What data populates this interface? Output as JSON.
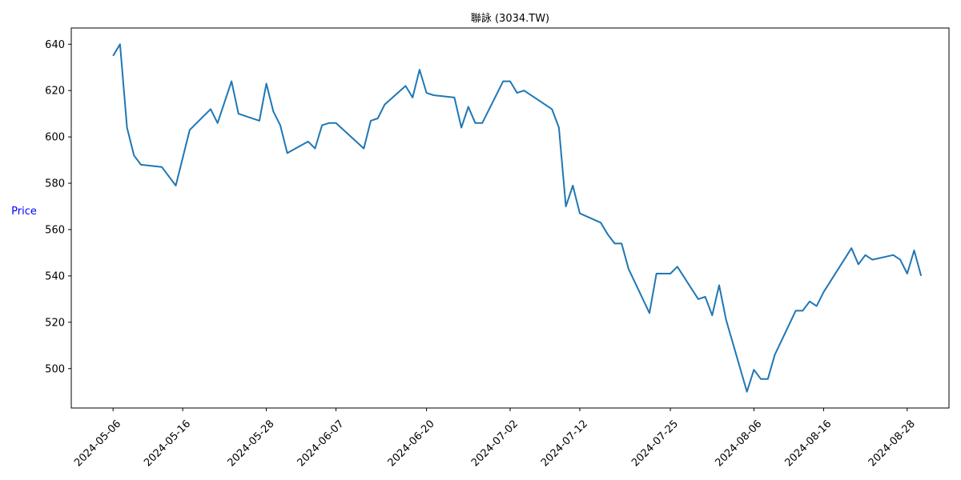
{
  "chart_data": {
    "type": "line",
    "title": "聯詠 (3034.TW)",
    "xlabel": "",
    "ylabel": "Price",
    "ylabel_color": "#0000ff",
    "line_color": "#1f77b4",
    "grid": false,
    "legend": "none",
    "x_tick_labels": [
      "2024-05-06",
      "2024-05-16",
      "2024-05-28",
      "2024-06-07",
      "2024-06-20",
      "2024-07-02",
      "2024-07-12",
      "2024-07-25",
      "2024-08-06",
      "2024-08-16",
      "2024-08-28"
    ],
    "y_ticks": [
      500,
      520,
      540,
      560,
      580,
      600,
      620,
      640
    ],
    "ylim": [
      483,
      647
    ],
    "xlim": [
      "2024-04-30",
      "2024-09-03"
    ],
    "series": [
      {
        "x": [
          "2024-05-06",
          "2024-05-07",
          "2024-05-08",
          "2024-05-09",
          "2024-05-10",
          "2024-05-13",
          "2024-05-15",
          "2024-05-17",
          "2024-05-20",
          "2024-05-21",
          "2024-05-22",
          "2024-05-23",
          "2024-05-24",
          "2024-05-27",
          "2024-05-28",
          "2024-05-29",
          "2024-05-30",
          "2024-05-31",
          "2024-06-03",
          "2024-06-04",
          "2024-06-05",
          "2024-06-06",
          "2024-06-07",
          "2024-06-11",
          "2024-06-12",
          "2024-06-13",
          "2024-06-14",
          "2024-06-17",
          "2024-06-18",
          "2024-06-19",
          "2024-06-20",
          "2024-06-21",
          "2024-06-24",
          "2024-06-25",
          "2024-06-26",
          "2024-06-27",
          "2024-06-28",
          "2024-07-01",
          "2024-07-02",
          "2024-07-03",
          "2024-07-04",
          "2024-07-08",
          "2024-07-09",
          "2024-07-10",
          "2024-07-11",
          "2024-07-12",
          "2024-07-15",
          "2024-07-16",
          "2024-07-17",
          "2024-07-18",
          "2024-07-19",
          "2024-07-22",
          "2024-07-23",
          "2024-07-24",
          "2024-07-25",
          "2024-07-26",
          "2024-07-29",
          "2024-07-30",
          "2024-07-31",
          "2024-08-01",
          "2024-08-02",
          "2024-08-05",
          "2024-08-06",
          "2024-08-07",
          "2024-08-08",
          "2024-08-09",
          "2024-08-12",
          "2024-08-13",
          "2024-08-14",
          "2024-08-15",
          "2024-08-16",
          "2024-08-20",
          "2024-08-21",
          "2024-08-22",
          "2024-08-23",
          "2024-08-26",
          "2024-08-27",
          "2024-08-28",
          "2024-08-29",
          "2024-08-30"
        ],
        "y": [
          635,
          640,
          604,
          592,
          588,
          587,
          579,
          603,
          612,
          606,
          615,
          624,
          610,
          607,
          623,
          611,
          605,
          593,
          598,
          595,
          605,
          606,
          606,
          595,
          607,
          608,
          614,
          622,
          617,
          629,
          619,
          618,
          617,
          604,
          613,
          606,
          606,
          624,
          624,
          619,
          620,
          612,
          604,
          570,
          579,
          567,
          563,
          558,
          554,
          554,
          543,
          524,
          541,
          541,
          541,
          544,
          530,
          531,
          523,
          536,
          521,
          490,
          499.5,
          495.5,
          495.5,
          506,
          525,
          525,
          529,
          527,
          533,
          552,
          545,
          549,
          547,
          549,
          547,
          541,
          551,
          540
        ]
      }
    ]
  }
}
